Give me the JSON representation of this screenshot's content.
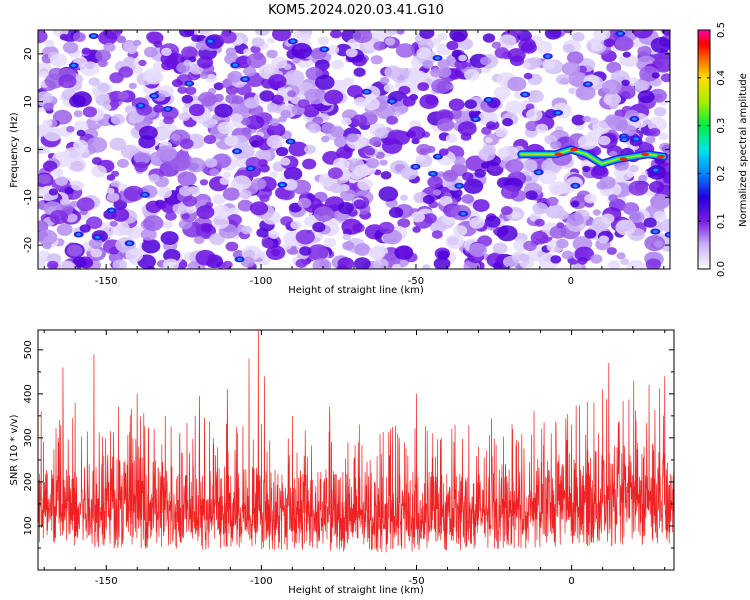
{
  "title": "KOM5.2024.020.03.41.G10",
  "chart_data": [
    {
      "type": "heatmap",
      "xlabel": "Height of straight line (km)",
      "ylabel": "Frequency (Hz)",
      "xlim": [
        -172,
        32
      ],
      "ylim": [
        -25,
        25
      ],
      "x_ticks": [
        -150,
        -100,
        -50,
        0
      ],
      "y_ticks": [
        -20,
        -10,
        0,
        10,
        20
      ],
      "colorbar": {
        "label": "Normalized spectral amplitude",
        "range": [
          0.0,
          0.5
        ],
        "ticks": [
          "0.0",
          "0.1",
          "0.2",
          "0.3",
          "0.4",
          "0.5"
        ]
      },
      "signal_track": [
        {
          "x": -16,
          "y": -1
        },
        {
          "x": -10,
          "y": -1
        },
        {
          "x": -5,
          "y": -1
        },
        {
          "x": 0,
          "y": 0
        },
        {
          "x": 5,
          "y": -1
        },
        {
          "x": 10,
          "y": -3
        },
        {
          "x": 15,
          "y": -2
        },
        {
          "x": 20,
          "y": -1.5
        },
        {
          "x": 25,
          "y": -1
        },
        {
          "x": 30,
          "y": -1.5
        }
      ]
    },
    {
      "type": "line",
      "xlabel": "Height of straight line (km)",
      "ylabel": "SNR (10 * v/v)",
      "xlim": [
        -172,
        33
      ],
      "ylim": [
        0,
        545
      ],
      "x_ticks": [
        -150,
        -100,
        -50,
        0
      ],
      "y_ticks": [
        100,
        200,
        300,
        400,
        500
      ],
      "series": [
        {
          "color": "#ee2222",
          "envelope": [
            {
              "x": -172,
              "low": 50,
              "mean": 140,
              "high": 250
            },
            {
              "x": -150,
              "low": 50,
              "mean": 150,
              "high": 290
            },
            {
              "x": -120,
              "low": 45,
              "mean": 130,
              "high": 260
            },
            {
              "x": -100,
              "low": 45,
              "mean": 130,
              "high": 260
            },
            {
              "x": -60,
              "low": 40,
              "mean": 120,
              "high": 240
            },
            {
              "x": -30,
              "low": 45,
              "mean": 125,
              "high": 250
            },
            {
              "x": 0,
              "low": 50,
              "mean": 150,
              "high": 290
            },
            {
              "x": 33,
              "low": 60,
              "mean": 175,
              "high": 330
            }
          ],
          "spikes": [
            {
              "x": -171,
              "y": 360
            },
            {
              "x": -164,
              "y": 460
            },
            {
              "x": -160,
              "y": 380
            },
            {
              "x": -154,
              "y": 490
            },
            {
              "x": -146,
              "y": 370
            },
            {
              "x": -140,
              "y": 400
            },
            {
              "x": -131,
              "y": 350
            },
            {
              "x": -120,
              "y": 395
            },
            {
              "x": -111,
              "y": 410
            },
            {
              "x": -104,
              "y": 480
            },
            {
              "x": -101,
              "y": 560
            },
            {
              "x": -99,
              "y": 440
            },
            {
              "x": -90,
              "y": 350
            },
            {
              "x": -78,
              "y": 370
            },
            {
              "x": -56,
              "y": 310
            },
            {
              "x": -50,
              "y": 400
            },
            {
              "x": -42,
              "y": 300
            },
            {
              "x": -19,
              "y": 320
            },
            {
              "x": -5,
              "y": 330
            },
            {
              "x": 10,
              "y": 410
            },
            {
              "x": 12,
              "y": 470
            },
            {
              "x": 20,
              "y": 430
            },
            {
              "x": 25,
              "y": 420
            },
            {
              "x": 30,
              "y": 440
            }
          ]
        }
      ]
    }
  ]
}
